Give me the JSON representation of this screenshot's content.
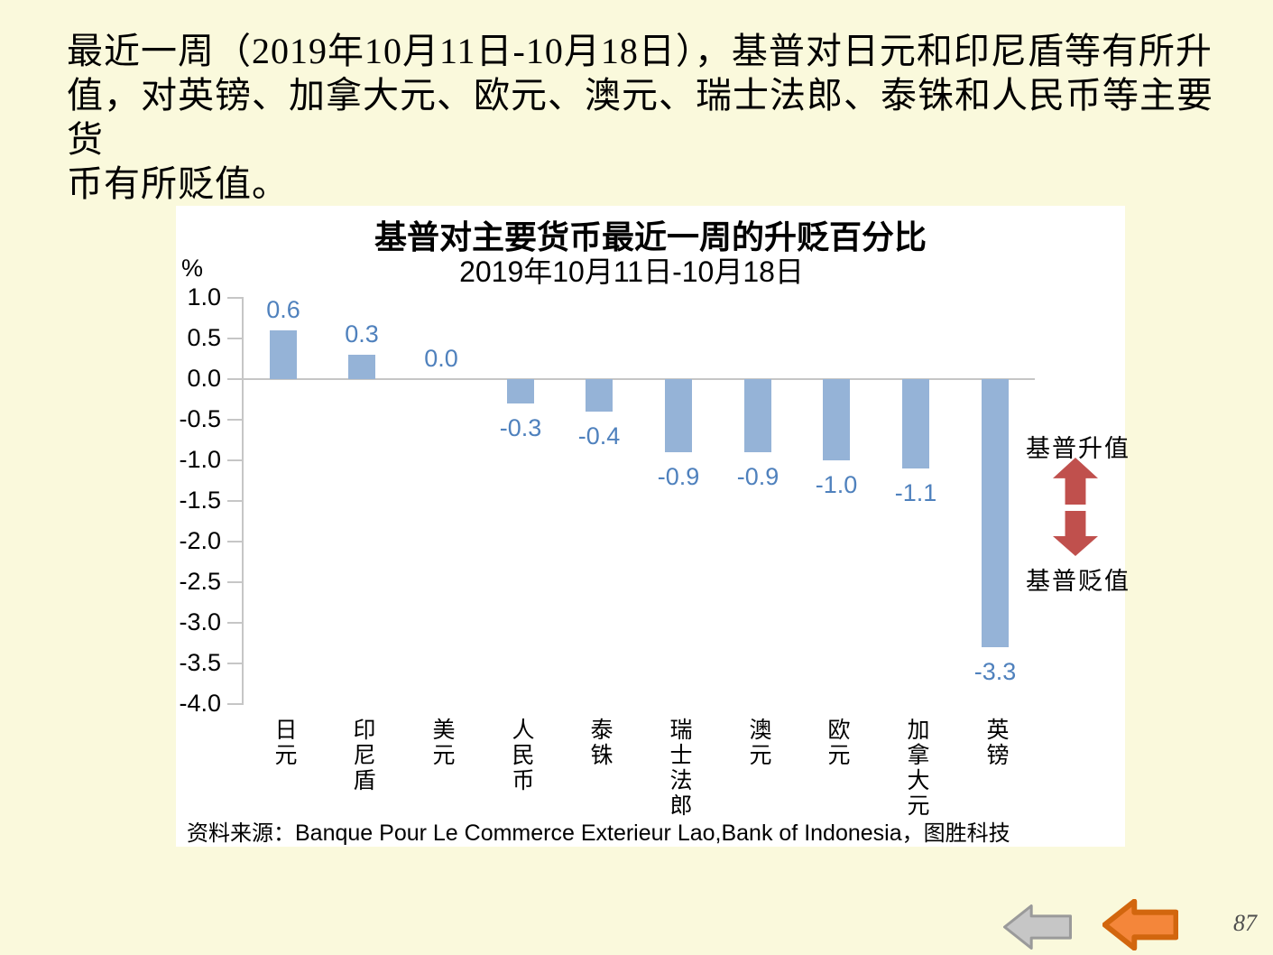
{
  "page": {
    "background_color": "#FAF9DC",
    "page_number": "87"
  },
  "heading": {
    "lines": [
      "最近一周（2019年10月11日-10月18日），基普对日元和印尼盾等有所升",
      "值，对英镑、加拿大元、欧元、澳元、瑞士法郎、泰铢和人民币等主要货",
      "币有所贬值。"
    ]
  },
  "chart": {
    "title": "基普对主要货币最近一周的升贬百分比",
    "subtitle": "2019年10月11日-10月18日",
    "unit_label": "%",
    "annotation_up": "基普升值",
    "annotation_down": "基普贬值",
    "source_prefix": "资料来源：",
    "source_latin": "Banque Pour Le Commerce Exterieur Lao,Bank of Indonesia",
    "source_suffix": "，图胜科技",
    "bar_color": "#95B3D7",
    "data_label_color": "#4F81BD",
    "axis_color": "#C6C6C6",
    "arrow_color": "#C0504D"
  },
  "chart_data": {
    "type": "bar",
    "title": "基普对主要货币最近一周的升贬百分比",
    "subtitle": "2019年10月11日-10月18日",
    "categories": [
      "日元",
      "印尼盾",
      "美元",
      "人民币",
      "泰铢",
      "瑞士法郎",
      "澳元",
      "欧元",
      "加拿大元",
      "英镑"
    ],
    "values": [
      0.6,
      0.3,
      0.0,
      -0.3,
      -0.4,
      -0.9,
      -0.9,
      -1.0,
      -1.1,
      -3.3
    ],
    "data_labels": [
      "0.6",
      "0.3",
      "0.0",
      "-0.3",
      "-0.4",
      "-0.9",
      "-0.9",
      "-1.0",
      "-1.1",
      "-3.3"
    ],
    "xlabel": "",
    "ylabel": "%",
    "ylim": [
      -4.0,
      1.0
    ],
    "ytick_step": 0.5,
    "yticks": [
      "1.0",
      "0.5",
      "0.0",
      "-0.5",
      "-1.0",
      "-1.5",
      "-2.0",
      "-2.5",
      "-3.0",
      "-3.5",
      "-4.0"
    ],
    "grid": false,
    "legend": false
  },
  "nav": {
    "gray_fill": "#C6C6C6",
    "gray_stroke": "#9A9A9A",
    "orange_fill": "#F4863A",
    "orange_stroke": "#D2660E"
  }
}
